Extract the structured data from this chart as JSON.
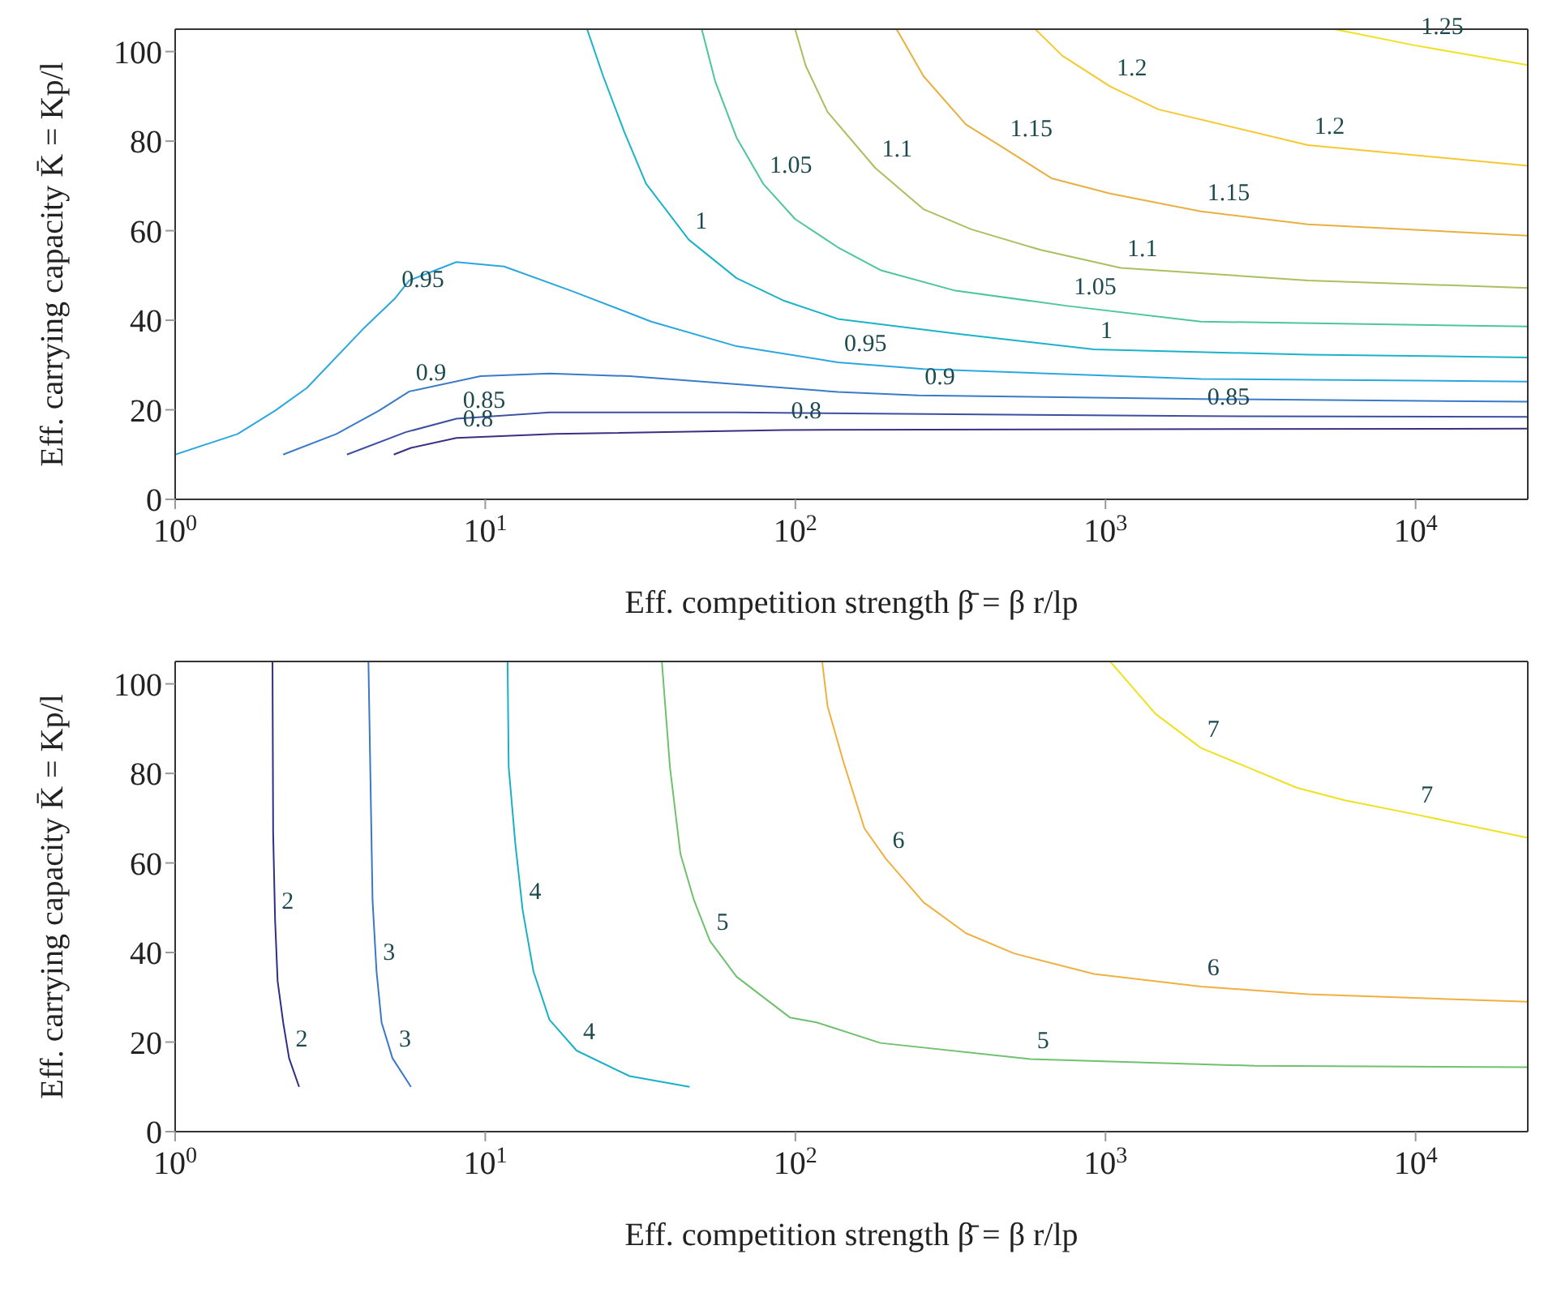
{
  "chart_data": [
    {
      "type": "line",
      "xlabel": "Eff. competition strength β̄ =  β r/lp",
      "ylabel": "Eff. carrying capacity K̄ =  Kp/l",
      "log": "x",
      "marker": "none",
      "xlim": [
        1,
        23000
      ],
      "ylim": [
        0,
        105
      ],
      "xticks": [
        {
          "value": 1,
          "label": "10$^{0}$"
        },
        {
          "value": 10,
          "label": "10$^{1}$"
        },
        {
          "value": 100,
          "label": "10$^{2}$"
        },
        {
          "value": 1000,
          "label": "10$^{3}$"
        },
        {
          "value": 10000,
          "label": "10$^{4}$"
        }
      ],
      "yticks": [
        0,
        20,
        40,
        60,
        80,
        100
      ],
      "series": [
        {
          "name": "0.8",
          "color": "#3b2f80",
          "x": [
            5.07,
            5.76,
            8.07,
            16.8,
            92.3,
            23000
          ],
          "values": [
            10,
            11.5,
            13.7,
            14.6,
            15.5,
            15.8
          ]
        },
        {
          "name": "0.85",
          "color": "#3d4fa0",
          "x": [
            3.58,
            5.54,
            8.07,
            16.1,
            64.6,
            2030,
            23000
          ],
          "values": [
            10,
            15,
            18,
            19.4,
            19.4,
            18.6,
            18.4
          ]
        },
        {
          "name": "0.9",
          "color": "#3a7bc8",
          "x": [
            2.23,
            3.31,
            4.54,
            5.69,
            9.66,
            16.1,
            29.2,
            137,
            249,
            2030,
            23000
          ],
          "values": [
            10,
            14.6,
            19.8,
            24.1,
            27.5,
            28.1,
            27.5,
            24,
            23.2,
            22.4,
            21.8
          ]
        },
        {
          "name": "0.95",
          "color": "#2ba7e0",
          "x": [
            1,
            1.59,
            2.1,
            2.66,
            4.03,
            5.12,
            5.69,
            8.07,
            11.5,
            18.9,
            34.3,
            64.6,
            137,
            259,
            2030,
            23000
          ],
          "values": [
            10,
            14.6,
            19.8,
            24.9,
            38,
            44.9,
            48.9,
            53,
            52,
            46.6,
            39.7,
            34.2,
            30.6,
            29.1,
            26.9,
            26.3
          ]
        },
        {
          "name": "1",
          "color": "#1ab3c8",
          "x": [
            21.3,
            24,
            28.1,
            33,
            45.3,
            64.6,
            92.3,
            137,
            341,
            918,
            4490,
            23000
          ],
          "values": [
            105,
            94.5,
            82,
            70.5,
            58,
            49.4,
            44.3,
            40.3,
            36.9,
            33.5,
            32.3,
            31.7
          ]
        },
        {
          "name": "1.05",
          "color": "#4cc69a",
          "x": [
            49.9,
            55.1,
            64.6,
            78.7,
            99.8,
            137,
            188,
            328,
            753,
            2030,
            23000
          ],
          "values": [
            105,
            93.4,
            80.8,
            70.5,
            62.6,
            56.3,
            51.2,
            46.6,
            43.2,
            39.7,
            38.6
          ]
        },
        {
          "name": "1.1",
          "color": "#a8c060",
          "x": [
            99.8,
            108,
            127,
            181,
            259,
            369,
            618,
            1120,
            4490,
            23000
          ],
          "values": [
            105,
            96.8,
            86.5,
            74,
            64.8,
            60.3,
            55.7,
            51.7,
            48.9,
            47.2
          ]
        },
        {
          "name": "1.15",
          "color": "#e8b040",
          "x": [
            212,
            259,
            355,
            469,
            670,
            1035,
            2030,
            4490,
            23000
          ],
          "values": [
            105,
            94.5,
            83.7,
            78.5,
            71.7,
            68.3,
            64.3,
            61.4,
            58.9
          ]
        },
        {
          "name": "1.2",
          "color": "#f6c830",
          "x": [
            594,
            725,
            1035,
            1479,
            4490,
            23000
          ],
          "values": [
            105,
            99.1,
            92.2,
            87.1,
            79.1,
            74.5
          ]
        },
        {
          "name": "1.25",
          "color": "#f0e020",
          "x": [
            5470,
            9910,
            23000
          ],
          "values": [
            105,
            101.4,
            97
          ]
        }
      ]
    },
    {
      "type": "line",
      "xlabel": "Eff. competition strength β̄ =  β r/lp",
      "ylabel": "Eff. carrying capacity K̄ =  Kp/l",
      "log": "x",
      "marker": "none",
      "xlim": [
        1,
        23000
      ],
      "ylim": [
        0,
        105
      ],
      "xticks": [
        {
          "value": 1,
          "label": "10$^{0}$"
        },
        {
          "value": 10,
          "label": "10$^{1}$"
        },
        {
          "value": 100,
          "label": "10$^{2}$"
        },
        {
          "value": 1000,
          "label": "10$^{3}$"
        },
        {
          "value": 10000,
          "label": "10$^{4}$"
        }
      ],
      "yticks": [
        0,
        20,
        40,
        60,
        80,
        100
      ],
      "series": [
        {
          "name": "2",
          "color": "#2e2f86",
          "x": [
            2.06,
            2.07,
            2.1,
            2.14,
            2.23,
            2.33,
            2.51
          ],
          "values": [
            105,
            66.7,
            47.3,
            33.6,
            24.4,
            16.4,
            10
          ]
        },
        {
          "name": "3",
          "color": "#3a78c8",
          "x": [
            4.2,
            4.33,
            4.46,
            4.63,
            5.02,
            5.76
          ],
          "values": [
            105,
            51.7,
            35.8,
            24.4,
            16.4,
            10
          ]
        },
        {
          "name": "4",
          "color": "#1ab0c8",
          "x": [
            11.8,
            11.9,
            12.5,
            13.2,
            14.3,
            16.1,
            19.7,
            29.2,
            45.6
          ],
          "values": [
            105,
            81.4,
            64.3,
            49.5,
            35.8,
            25,
            18.1,
            12.4,
            10
          ]
        },
        {
          "name": "5",
          "color": "#70c070",
          "x": [
            37.1,
            39.4,
            42.6,
            47.1,
            53,
            64.6,
            96,
            117,
            188,
            573,
            3020,
            23000
          ],
          "values": [
            105,
            81.4,
            62,
            51.7,
            42.6,
            34.6,
            25.5,
            24.4,
            19.8,
            16.2,
            14.7,
            14.4
          ]
        },
        {
          "name": "6",
          "color": "#f0b040",
          "x": [
            122,
            127,
            143,
            167,
            196,
            259,
            355,
            507,
            918,
            2030,
            4490,
            23000
          ],
          "values": [
            105,
            95,
            82.5,
            67.7,
            60.9,
            51.2,
            44.3,
            39.8,
            35.2,
            32.4,
            30.7,
            29
          ]
        },
        {
          "name": "7",
          "color": "#f0e020",
          "x": [
            1035,
            1450,
            2030,
            4140,
            5910,
            9910,
            23000
          ],
          "values": [
            105,
            93.3,
            85.7,
            76.8,
            74,
            70.9,
            65.6
          ]
        }
      ]
    }
  ]
}
